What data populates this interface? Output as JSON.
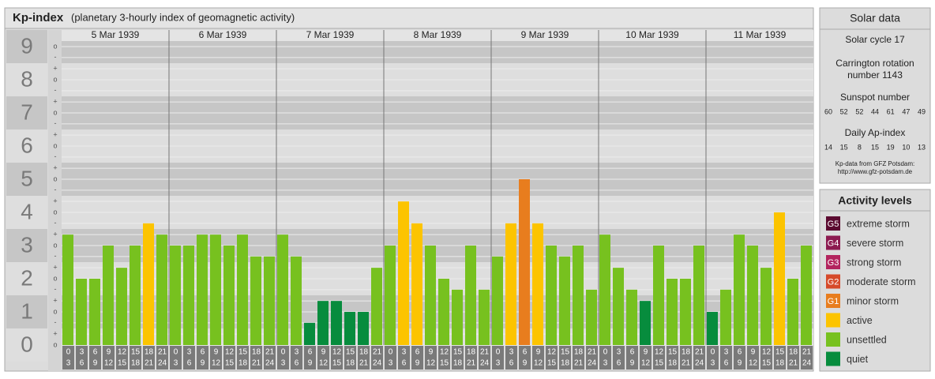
{
  "chart_data": {
    "type": "bar",
    "title": "Kp-index",
    "subtitle": "(planetary 3-hourly index of geomagnetic activity)",
    "ylim": [
      0,
      9.5
    ],
    "yticks": [
      0,
      1,
      2,
      3,
      4,
      5,
      6,
      7,
      8,
      9
    ],
    "minor_yticks": [
      {
        "value": 0,
        "label": "o"
      },
      {
        "value": 0.33,
        "label": "+"
      },
      {
        "value": 0.67,
        "label": "-"
      },
      {
        "value": 1,
        "label": "o"
      },
      {
        "value": 1.33,
        "label": "+"
      },
      {
        "value": 1.67,
        "label": "-"
      },
      {
        "value": 2,
        "label": "o"
      },
      {
        "value": 2.33,
        "label": "+"
      },
      {
        "value": 2.67,
        "label": "-"
      },
      {
        "value": 3,
        "label": "o"
      },
      {
        "value": 3.33,
        "label": "+"
      },
      {
        "value": 3.67,
        "label": "-"
      },
      {
        "value": 4,
        "label": "o"
      },
      {
        "value": 4.33,
        "label": "+"
      },
      {
        "value": 4.67,
        "label": "-"
      },
      {
        "value": 5,
        "label": "o"
      },
      {
        "value": 5.33,
        "label": "+"
      },
      {
        "value": 5.67,
        "label": "-"
      },
      {
        "value": 6,
        "label": "o"
      },
      {
        "value": 6.33,
        "label": "+"
      },
      {
        "value": 6.67,
        "label": "-"
      },
      {
        "value": 7,
        "label": "o"
      },
      {
        "value": 7.33,
        "label": "+"
      },
      {
        "value": 7.67,
        "label": "-"
      },
      {
        "value": 8,
        "label": "o"
      },
      {
        "value": 8.33,
        "label": "+"
      },
      {
        "value": 8.67,
        "label": "-"
      },
      {
        "value": 9,
        "label": "o"
      }
    ],
    "hour_bins": [
      [
        0,
        3
      ],
      [
        3,
        6
      ],
      [
        6,
        9
      ],
      [
        9,
        12
      ],
      [
        12,
        15
      ],
      [
        15,
        18
      ],
      [
        18,
        21
      ],
      [
        21,
        24
      ]
    ],
    "days": [
      {
        "date": "5 Mar 1939",
        "values": [
          3.33,
          2,
          2,
          3,
          2.33,
          3,
          3.67,
          3.33
        ],
        "colors": [
          "#77c11f",
          "#77c11f",
          "#77c11f",
          "#77c11f",
          "#77c11f",
          "#77c11f",
          "#fcc400",
          "#77c11f"
        ]
      },
      {
        "date": "6 Mar 1939",
        "values": [
          3,
          3,
          3.33,
          3.33,
          3,
          3.33,
          2.67,
          2.67
        ],
        "colors": [
          "#77c11f",
          "#77c11f",
          "#77c11f",
          "#77c11f",
          "#77c11f",
          "#77c11f",
          "#77c11f",
          "#77c11f"
        ]
      },
      {
        "date": "7 Mar 1939",
        "values": [
          3.33,
          2.67,
          0.67,
          1.33,
          1.33,
          1,
          1,
          2.33
        ],
        "colors": [
          "#77c11f",
          "#77c11f",
          "#078c3d",
          "#078c3d",
          "#078c3d",
          "#078c3d",
          "#078c3d",
          "#77c11f"
        ]
      },
      {
        "date": "8 Mar 1939",
        "values": [
          3,
          4.33,
          3.67,
          3,
          2,
          1.67,
          3,
          1.67
        ],
        "colors": [
          "#77c11f",
          "#fcc400",
          "#fcc400",
          "#77c11f",
          "#77c11f",
          "#77c11f",
          "#77c11f",
          "#77c11f"
        ]
      },
      {
        "date": "9 Mar 1939",
        "values": [
          2.67,
          3.67,
          5,
          3.67,
          3,
          2.67,
          3,
          1.67
        ],
        "colors": [
          "#77c11f",
          "#fcc400",
          "#e87d1e",
          "#fcc400",
          "#77c11f",
          "#77c11f",
          "#77c11f",
          "#77c11f"
        ]
      },
      {
        "date": "10 Mar 1939",
        "values": [
          3.33,
          2.33,
          1.67,
          1.33,
          3,
          2,
          2,
          3
        ],
        "colors": [
          "#77c11f",
          "#77c11f",
          "#77c11f",
          "#078c3d",
          "#77c11f",
          "#77c11f",
          "#77c11f",
          "#77c11f"
        ]
      },
      {
        "date": "11 Mar 1939",
        "values": [
          1,
          1.67,
          3.33,
          3,
          2.33,
          4,
          2,
          3
        ],
        "colors": [
          "#078c3d",
          "#77c11f",
          "#77c11f",
          "#77c11f",
          "#77c11f",
          "#fcc400",
          "#77c11f",
          "#77c11f"
        ]
      }
    ]
  },
  "solar_data": {
    "title": "Solar data",
    "cycle": "Solar cycle 17",
    "carrington": [
      "Carrington rotation",
      "number 1143"
    ],
    "sunspot_title": "Sunspot number",
    "sunspot": [
      60,
      52,
      52,
      44,
      61,
      47,
      49
    ],
    "ap_title": "Daily Ap-index",
    "ap": [
      14,
      15,
      8,
      15,
      19,
      10,
      13
    ],
    "source": [
      "Kp-data from GFZ Potsdam:",
      "http://www.gfz-potsdam.de"
    ]
  },
  "activity_levels": {
    "title": "Activity levels",
    "items": [
      {
        "badge": "G5",
        "label": "extreme storm",
        "color": "#5b0a30"
      },
      {
        "badge": "G4",
        "label": "severe storm",
        "color": "#8c1a50"
      },
      {
        "badge": "G3",
        "label": "strong storm",
        "color": "#b3245e"
      },
      {
        "badge": "G2",
        "label": "moderate storm",
        "color": "#d64a2a"
      },
      {
        "badge": "G1",
        "label": "minor storm",
        "color": "#e87d1e"
      },
      {
        "label": "active",
        "color": "#fcc400"
      },
      {
        "label": "unsettled",
        "color": "#77c11f"
      },
      {
        "label": "quiet",
        "color": "#078c3d"
      }
    ]
  }
}
